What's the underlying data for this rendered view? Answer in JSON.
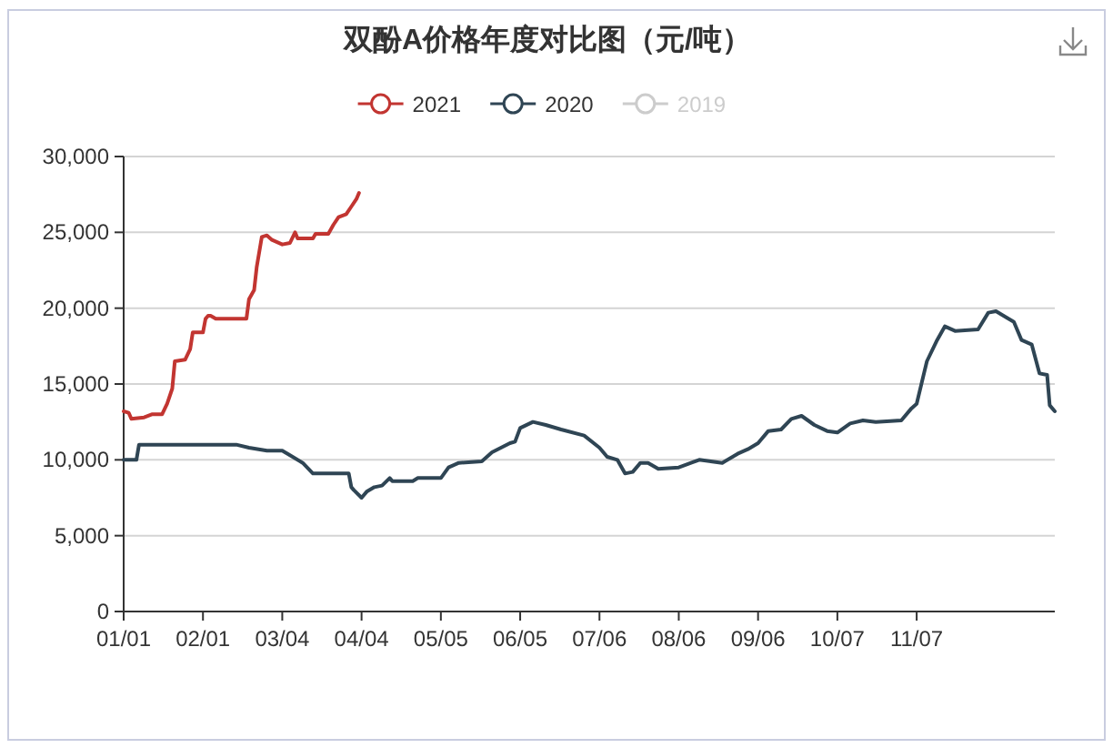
{
  "chart_data": {
    "type": "line",
    "title": "双酚A价格年度对比图（元/吨）",
    "xlim": [
      "--01-01",
      "--12-31"
    ],
    "xticks": [
      {
        "value": "--01-01",
        "label": "01/01"
      },
      {
        "value": "--02-01",
        "label": "02/01"
      },
      {
        "value": "--03-04",
        "label": "03/04"
      },
      {
        "value": "--04-04",
        "label": "04/04"
      },
      {
        "value": "--05-05",
        "label": "05/05"
      },
      {
        "value": "--06-05",
        "label": "06/05"
      },
      {
        "value": "--07-06",
        "label": "07/06"
      },
      {
        "value": "--08-06",
        "label": "08/06"
      },
      {
        "value": "--09-06",
        "label": "09/06"
      },
      {
        "value": "--10-07",
        "label": "10/07"
      },
      {
        "value": "--11-07",
        "label": "11/07"
      }
    ],
    "ylim": [
      0,
      30000
    ],
    "yticks": [
      0,
      {
        "value": 5000,
        "label": "5,000"
      },
      {
        "value": 10000,
        "label": "10,000"
      },
      {
        "value": 15000,
        "label": "15,000"
      },
      {
        "value": 20000,
        "label": "20,000"
      },
      {
        "value": 25000,
        "label": "25,000"
      },
      {
        "value": 30000,
        "label": "30,000"
      }
    ],
    "grid": "y",
    "legend": "top",
    "line_style": "solid",
    "series": [
      {
        "name": "2021",
        "color": "#c23531",
        "x": [
          "--01-01",
          "--01-03",
          "--01-04",
          "--01-09",
          "--01-12",
          "--01-16",
          "--01-18",
          "--01-20",
          "--01-21",
          "--01-25",
          "--01-27",
          "--01-28",
          "--02-01",
          "--02-02",
          "--02-03",
          "--02-04",
          "--02-06",
          "--02-18",
          "--02-19",
          "--02-21",
          "--02-22",
          "--02-24",
          "--02-26",
          "--02-28",
          "--03-04",
          "--03-07",
          "--03-09",
          "--03-10",
          "--03-16",
          "--03-17",
          "--03-22",
          "--03-24",
          "--03-26",
          "--03-29",
          "--03-31",
          "--04-02",
          "--04-03"
        ],
        "values": [
          13200,
          13100,
          12700,
          12800,
          13000,
          13000,
          13700,
          14700,
          16500,
          16600,
          17300,
          18400,
          18400,
          19300,
          19500,
          19500,
          19300,
          19300,
          20600,
          21200,
          22700,
          24700,
          24800,
          24500,
          24200,
          24300,
          25000,
          24600,
          24600,
          24900,
          24900,
          25500,
          26000,
          26200,
          26700,
          27200,
          27600
        ]
      },
      {
        "name": "2020",
        "color": "#2f4554",
        "x": [
          "--01-01",
          "--01-06",
          "--01-07",
          "--02-01",
          "--02-14",
          "--02-19",
          "--02-26",
          "--03-04",
          "--03-07",
          "--03-12",
          "--03-16",
          "--03-30",
          "--03-31",
          "--04-01",
          "--04-04",
          "--04-06",
          "--04-09",
          "--04-12",
          "--04-15",
          "--04-16",
          "--04-24",
          "--04-26",
          "--05-05",
          "--05-08",
          "--05-12",
          "--05-21",
          "--05-25",
          "--06-01",
          "--06-03",
          "--06-05",
          "--06-10",
          "--06-15",
          "--06-21",
          "--06-30",
          "--07-06",
          "--07-09",
          "--07-13",
          "--07-16",
          "--07-19",
          "--07-22",
          "--07-25",
          "--07-29",
          "--08-06",
          "--08-14",
          "--08-23",
          "--08-29",
          "--09-02",
          "--09-06",
          "--09-10",
          "--09-15",
          "--09-19",
          "--09-23",
          "--09-28",
          "--10-03",
          "--10-07",
          "--10-12",
          "--10-17",
          "--10-22",
          "--11-01",
          "--11-05",
          "--11-07",
          "--11-11",
          "--11-15",
          "--11-18",
          "--11-22",
          "--12-01",
          "--12-05",
          "--12-08",
          "--12-12",
          "--12-15",
          "--12-18",
          "--12-22",
          "--12-25",
          "--12-28",
          "--12-29",
          "--12-31"
        ],
        "values": [
          10000,
          10000,
          11000,
          11000,
          11000,
          10800,
          10600,
          10600,
          10300,
          9800,
          9100,
          9100,
          8200,
          8000,
          7500,
          7900,
          8200,
          8300,
          8800,
          8600,
          8600,
          8800,
          8800,
          9500,
          9800,
          9900,
          10500,
          11100,
          11200,
          12100,
          12500,
          12300,
          12000,
          11600,
          10800,
          10200,
          10000,
          9100,
          9200,
          9800,
          9800,
          9400,
          9500,
          10000,
          9800,
          10400,
          10700,
          11100,
          11900,
          12000,
          12700,
          12900,
          12300,
          11900,
          11800,
          12400,
          12600,
          12500,
          12600,
          13400,
          13700,
          16500,
          17900,
          18800,
          18500,
          18600,
          19700,
          19800,
          19400,
          19100,
          17900,
          17600,
          15700,
          15600,
          13600,
          13200
        ]
      },
      {
        "name": "2019",
        "color": "#cccccc"
      }
    ]
  }
}
